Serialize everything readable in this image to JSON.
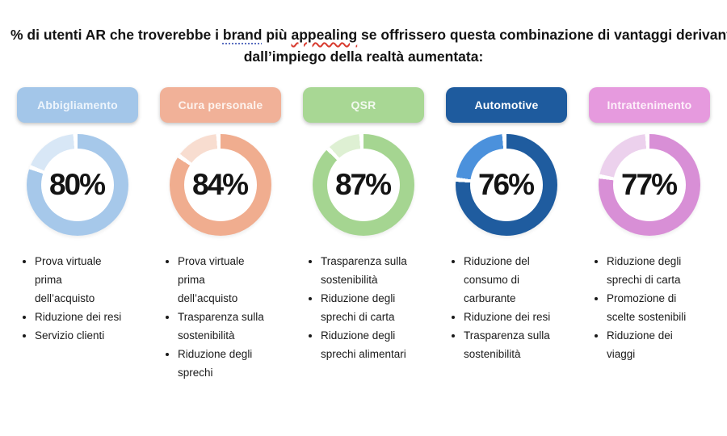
{
  "title": {
    "line1_pre": "% di utenti AR che troverebbe i ",
    "line1_brand": "brand",
    "line1_mid": " più ",
    "line1_appealing": "appealing",
    "line1_post": " se offrissero questa combinazione di vantaggi derivanti",
    "line2": "dall’impiego della realtà aumentata:"
  },
  "columns": [
    {
      "label": "Abbigliamento",
      "value": 80,
      "percent_label": "80%",
      "colors": {
        "pill_bg": "#a3c6e9",
        "pill_text": "#eef5fc",
        "arc_main": "#a6c8ea",
        "arc_rest": "#d8e7f6"
      },
      "bullets": [
        "Prova virtuale\nprima\ndell’acquisto",
        "Riduzione dei resi",
        "Servizio clienti"
      ]
    },
    {
      "label": "Cura personale",
      "value": 84,
      "percent_label": "84%",
      "colors": {
        "pill_bg": "#f1b198",
        "pill_text": "#fdf3ee",
        "arc_main": "#f0ad8f",
        "arc_rest": "#f8ddd0"
      },
      "bullets": [
        "Prova virtuale\nprima\ndell’acquisto",
        "Trasparenza sulla\nsostenibilità",
        "Riduzione degli\nsprechi"
      ]
    },
    {
      "label": "QSR",
      "value": 87,
      "percent_label": "87%",
      "colors": {
        "pill_bg": "#a8d794",
        "pill_text": "#f2f9ee",
        "arc_main": "#a5d591",
        "arc_rest": "#def0d3"
      },
      "bullets": [
        "Trasparenza sulla\nsostenibilità",
        "Riduzione degli\nsprechi di carta",
        "Riduzione degli\nsprechi alimentari"
      ]
    },
    {
      "label": "Automotive",
      "value": 76,
      "percent_label": "76%",
      "colors": {
        "pill_bg": "#1e5b9e",
        "pill_text": "#ffffff",
        "arc_main": "#1f5c9f",
        "arc_rest": "#4b91dc"
      },
      "bullets": [
        "Riduzione del\nconsumo di\ncarburante",
        "Riduzione dei resi",
        "Trasparenza sulla\nsostenibilità"
      ]
    },
    {
      "label": "Intrattenimento",
      "value": 77,
      "percent_label": "77%",
      "colors": {
        "pill_bg": "#e69ade",
        "pill_text": "#fdf0fa",
        "arc_main": "#d88fd6",
        "arc_rest": "#ecd1ed"
      },
      "bullets": [
        "Riduzione degli\nsprechi di carta",
        "Promozione di\nscelte sostenibili",
        "Riduzione dei\nviaggi"
      ]
    }
  ],
  "chart_data": {
    "type": "pie",
    "variant": "donut-gauge-set",
    "title": "% di utenti AR che troverebbe i brand più appealing se offrissero questa combinazione di vantaggi derivanti dall’impiego della realtà aumentata:",
    "categories": [
      "Abbigliamento",
      "Cura personale",
      "QSR",
      "Automotive",
      "Intrattenimento"
    ],
    "values": [
      80,
      84,
      87,
      76,
      77
    ],
    "unit": "%",
    "legend_position": "none",
    "notes": "Each donut shows the percentage as the main colored arc starting at 12 o'clock clockwise; the remainder is a lighter tint of the same hue, separated by small white gaps."
  }
}
